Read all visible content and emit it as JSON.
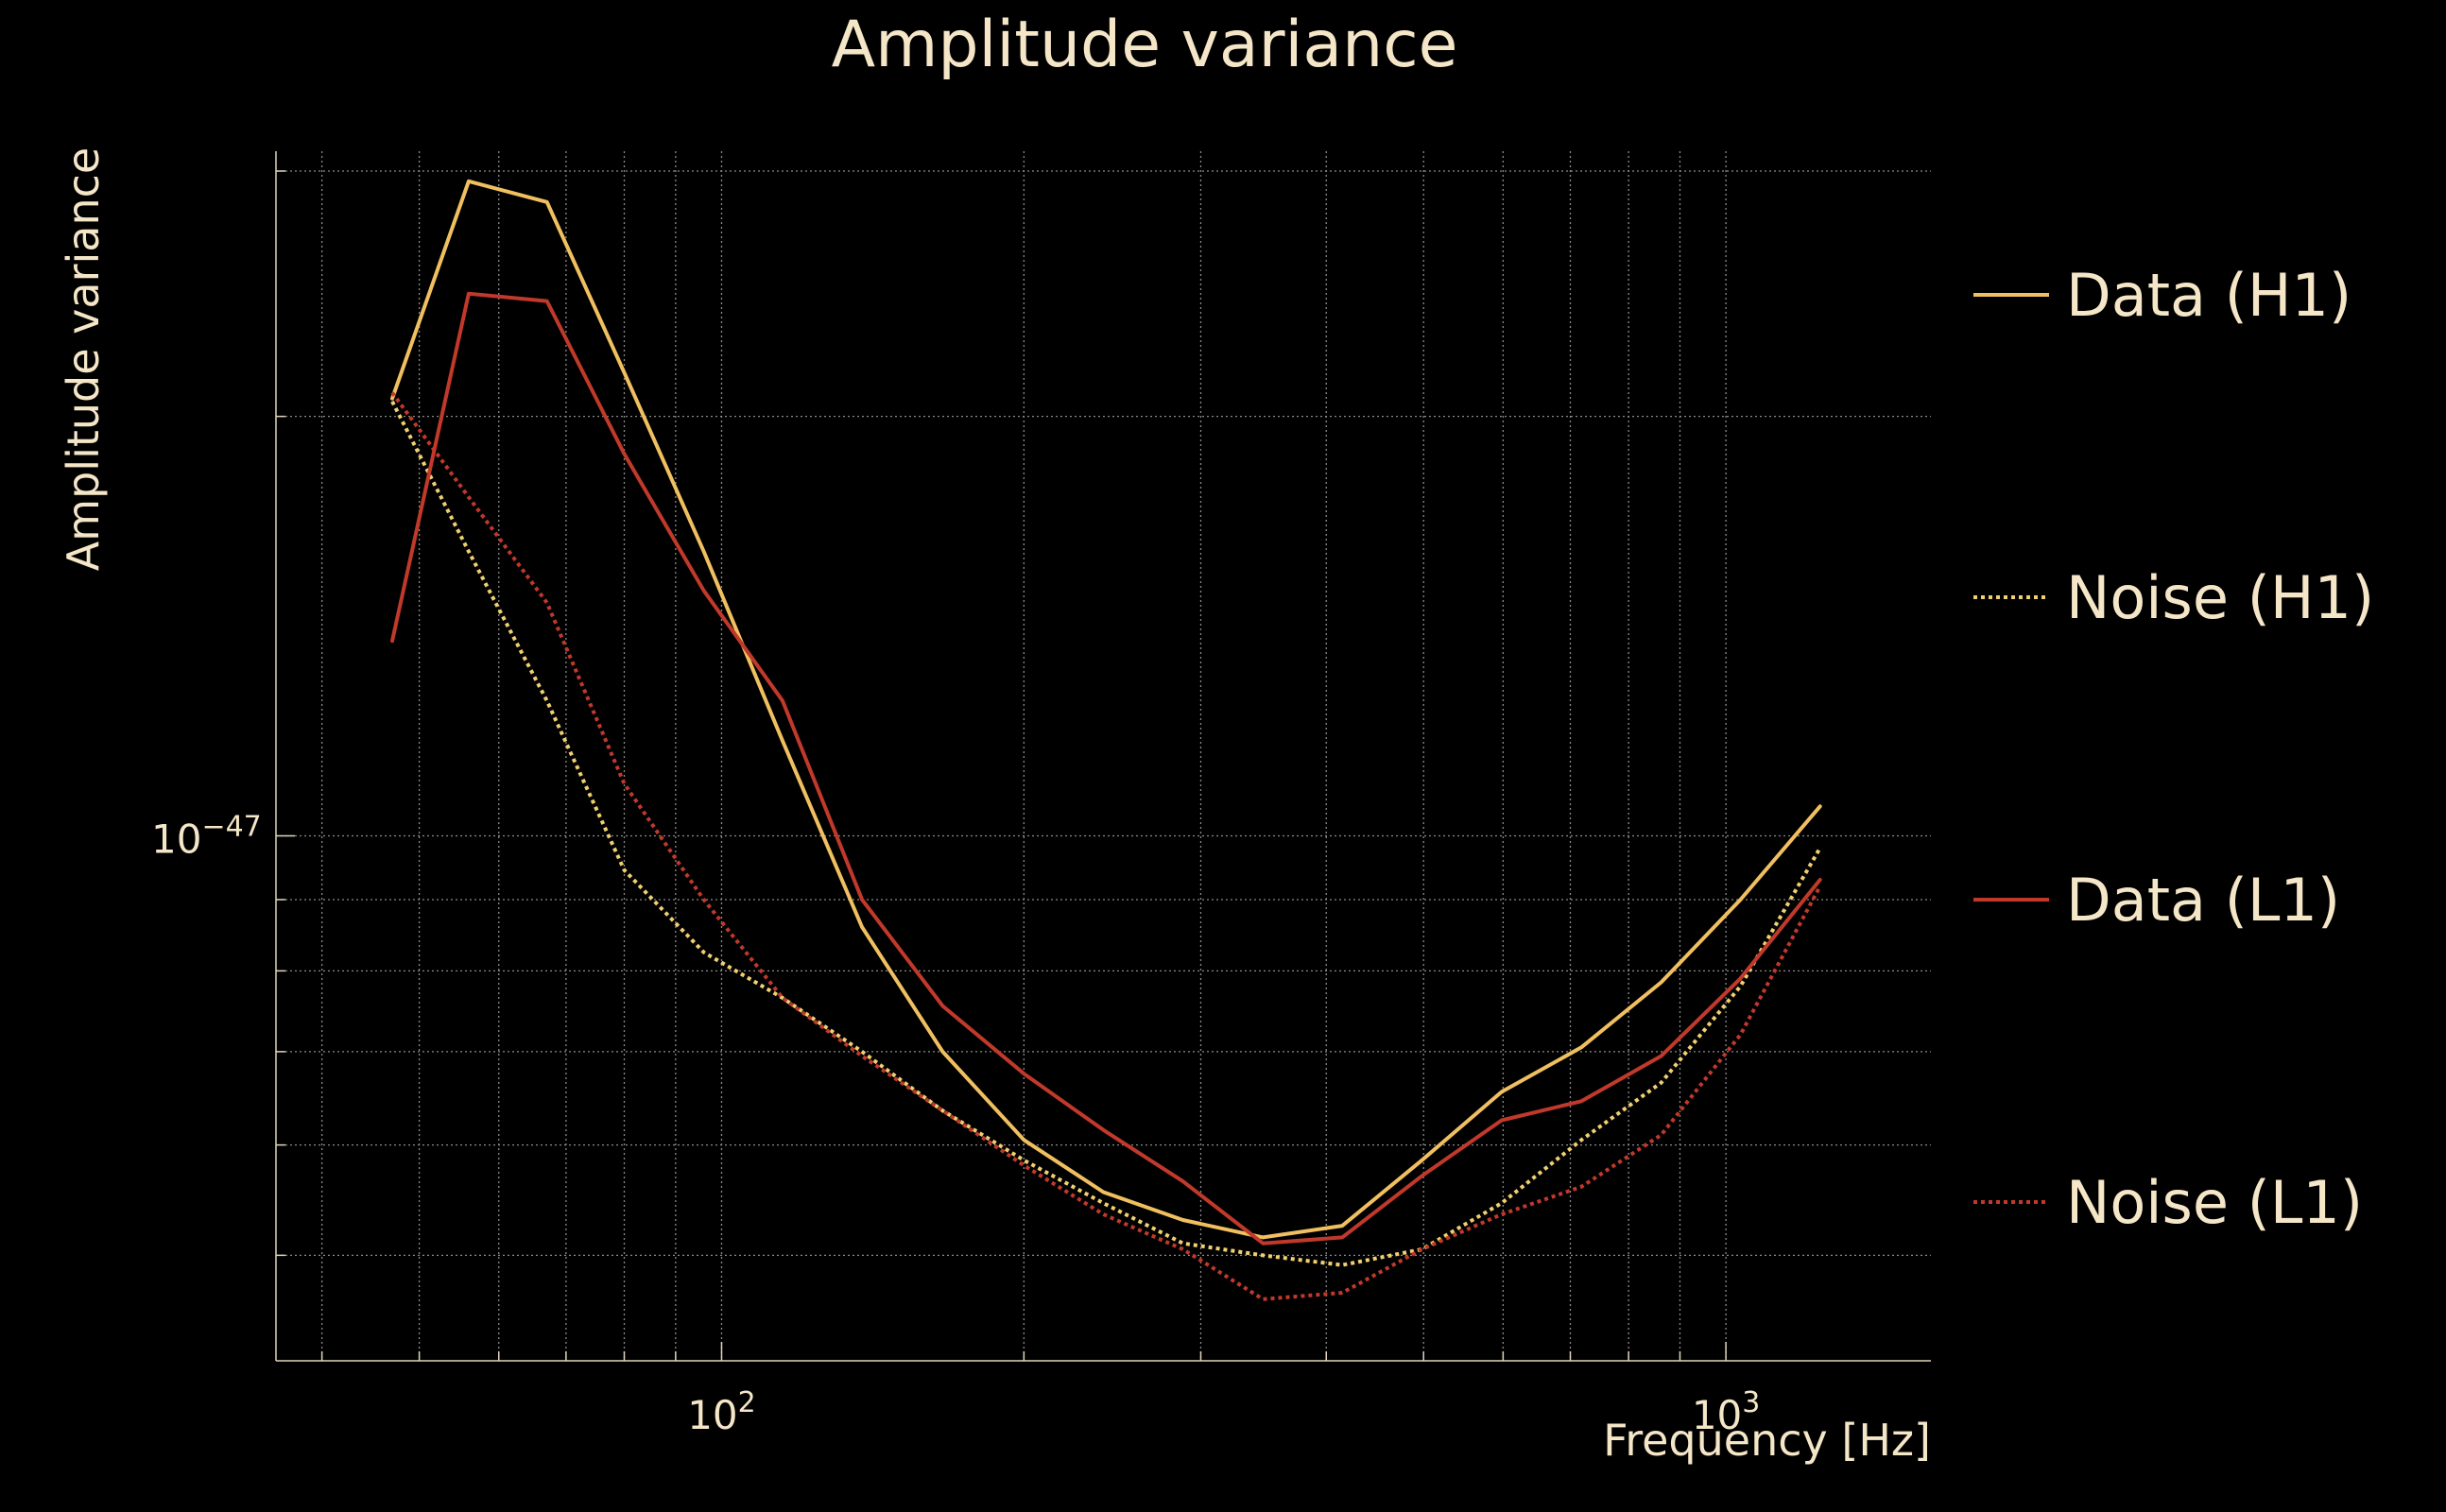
{
  "chart_data": {
    "type": "line",
    "title": "Amplitude variance",
    "xlabel": "Frequency [Hz]",
    "ylabel": "Amplitude variance",
    "xscale": "log",
    "yscale": "log",
    "xlim": [
      36,
      1600
    ],
    "ylim": [
      4.2e-48,
      3.1e-47
    ],
    "x_ticks": [
      {
        "value": 100,
        "base": "10",
        "exp": "2"
      },
      {
        "value": 1000,
        "base": "10",
        "exp": "3"
      }
    ],
    "y_ticks": [
      {
        "value": 1e-47,
        "base": "10",
        "exp": "−47"
      }
    ],
    "grid": true,
    "legend_position": "right",
    "x": [
      47,
      56,
      67,
      80,
      96,
      115,
      138,
      166,
      200,
      240,
      288,
      346,
      415,
      498,
      598,
      718,
      862,
      1034,
      1241
    ],
    "series": [
      {
        "name": "Data (H1)",
        "color": "#f0c060",
        "style": "solid",
        "values": [
          2.06e-47,
          2.95e-47,
          2.85e-47,
          2.15e-47,
          1.6e-47,
          1.17e-47,
          8.6e-48,
          7e-48,
          6.05e-48,
          5.55e-48,
          5.3e-48,
          5.15e-48,
          5.25e-48,
          5.85e-48,
          6.55e-48,
          7.05e-48,
          7.85e-48,
          9e-48,
          1.05e-47
        ]
      },
      {
        "name": "Noise (H1)",
        "color": "#f0d070",
        "style": "dotted",
        "values": [
          2.05e-47,
          1.6e-47,
          1.25e-47,
          9.45e-48,
          8.25e-48,
          7.65e-48,
          7e-48,
          6.35e-48,
          5.85e-48,
          5.45e-48,
          5.1e-48,
          5e-48,
          4.92e-48,
          5.05e-48,
          5.45e-48,
          6.05e-48,
          6.65e-48,
          7.8e-48,
          9.8e-48
        ]
      },
      {
        "name": "Data (L1)",
        "color": "#c0392b",
        "style": "solid",
        "values": [
          1.38e-47,
          2.45e-47,
          2.42e-47,
          1.88e-47,
          1.5e-47,
          1.25e-47,
          9e-48,
          7.55e-48,
          6.75e-48,
          6.15e-48,
          5.65e-48,
          5.1e-48,
          5.15e-48,
          5.7e-48,
          6.25e-48,
          6.45e-48,
          6.95e-48,
          7.9e-48,
          9.3e-48
        ]
      },
      {
        "name": "Noise (L1)",
        "color": "#c0392b",
        "style": "dotted",
        "values": [
          2.08e-47,
          1.75e-47,
          1.47e-47,
          1.09e-47,
          9e-48,
          7.65e-48,
          6.95e-48,
          6.35e-48,
          5.8e-48,
          5.35e-48,
          5.05e-48,
          4.65e-48,
          4.7e-48,
          5.05e-48,
          5.35e-48,
          5.6e-48,
          6.1e-48,
          7.2e-48,
          9.2e-48
        ]
      }
    ]
  }
}
